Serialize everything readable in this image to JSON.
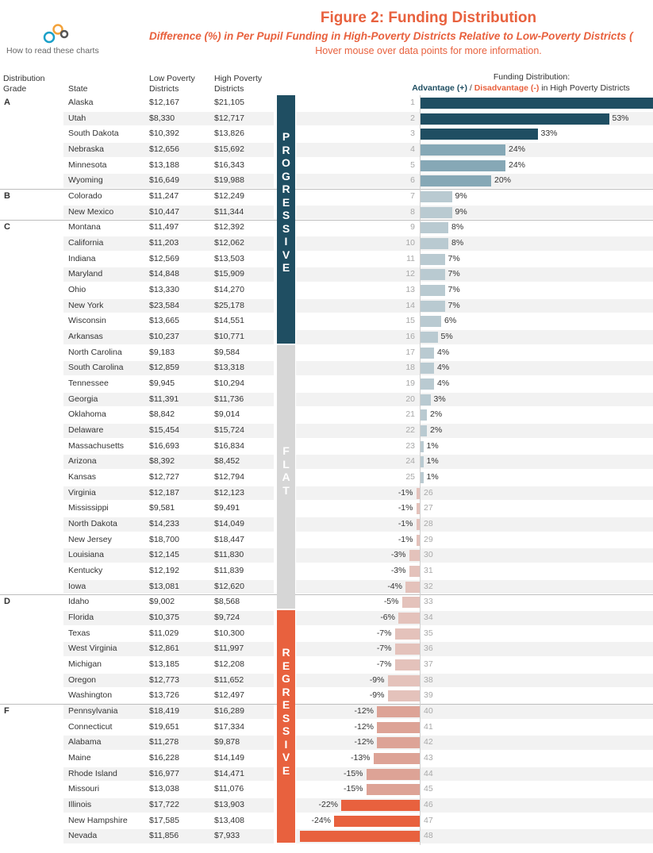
{
  "header": {
    "logo_caption": "How to read these charts",
    "title": "Figure 2: Funding Distribution",
    "subtitle": "Difference (%) in Per Pupil Funding in High-Poverty Districts Relative to Low-Poverty Districts (",
    "hover_note": "Hover mouse over data points for more information."
  },
  "columns": {
    "grade_1": "Distribution",
    "grade_2": "Grade",
    "state": "State",
    "low_1": "Low Poverty",
    "low_2": "Districts",
    "high_1": "High Poverty",
    "high_2": "Districts",
    "fd_title": "Funding Distribution:",
    "legend_adv": "Advantage (+)",
    "legend_sep": " / ",
    "legend_dis": "Disadvantage (-)",
    "legend_tail": " in High Poverty Districts"
  },
  "bands": {
    "progressive": "PROGRESSIVE",
    "flat": "FLAT",
    "regressive": "REGRESSIVE"
  },
  "colors": {
    "progressive": "#1f4e62",
    "flat": "#d6d6d6",
    "regressive": "#e8613e",
    "bar_top": "#1f4e62",
    "bar_mid": "#86a8b6",
    "bar_light": "#b9cad1",
    "bar_neg_light": "#e4c2bb",
    "bar_neg_mid": "#dda396",
    "bar_neg_dark": "#e8613e"
  },
  "chart_data": {
    "type": "bar",
    "title": "Funding Distribution: Advantage (+) / Disadvantage (-) in High Poverty Districts",
    "xlabel": "",
    "ylabel": "",
    "value_unit": "%",
    "grades": [
      "A",
      "B",
      "C",
      "D",
      "F"
    ],
    "rows": [
      {
        "grade": "A",
        "state": "Alaska",
        "low": "$12,167",
        "high": "$21,105",
        "rank": "1",
        "pct": 73,
        "label": ""
      },
      {
        "grade": "",
        "state": "Utah",
        "low": "$8,330",
        "high": "$12,717",
        "rank": "2",
        "pct": 53,
        "label": "53%"
      },
      {
        "grade": "",
        "state": "South Dakota",
        "low": "$10,392",
        "high": "$13,826",
        "rank": "3",
        "pct": 33,
        "label": "33%"
      },
      {
        "grade": "",
        "state": "Nebraska",
        "low": "$12,656",
        "high": "$15,692",
        "rank": "4",
        "pct": 24,
        "label": "24%"
      },
      {
        "grade": "",
        "state": "Minnesota",
        "low": "$13,188",
        "high": "$16,343",
        "rank": "5",
        "pct": 24,
        "label": "24%"
      },
      {
        "grade": "",
        "state": "Wyoming",
        "low": "$16,649",
        "high": "$19,988",
        "rank": "6",
        "pct": 20,
        "label": "20%"
      },
      {
        "grade": "B",
        "state": "Colorado",
        "low": "$11,247",
        "high": "$12,249",
        "rank": "7",
        "pct": 9,
        "label": "9%"
      },
      {
        "grade": "",
        "state": "New Mexico",
        "low": "$10,447",
        "high": "$11,344",
        "rank": "8",
        "pct": 9,
        "label": "9%"
      },
      {
        "grade": "C",
        "state": "Montana",
        "low": "$11,497",
        "high": "$12,392",
        "rank": "9",
        "pct": 8,
        "label": "8%"
      },
      {
        "grade": "",
        "state": "California",
        "low": "$11,203",
        "high": "$12,062",
        "rank": "10",
        "pct": 8,
        "label": "8%"
      },
      {
        "grade": "",
        "state": "Indiana",
        "low": "$12,569",
        "high": "$13,503",
        "rank": "11",
        "pct": 7,
        "label": "7%"
      },
      {
        "grade": "",
        "state": "Maryland",
        "low": "$14,848",
        "high": "$15,909",
        "rank": "12",
        "pct": 7,
        "label": "7%"
      },
      {
        "grade": "",
        "state": "Ohio",
        "low": "$13,330",
        "high": "$14,270",
        "rank": "13",
        "pct": 7,
        "label": "7%"
      },
      {
        "grade": "",
        "state": "New York",
        "low": "$23,584",
        "high": "$25,178",
        "rank": "14",
        "pct": 7,
        "label": "7%"
      },
      {
        "grade": "",
        "state": "Wisconsin",
        "low": "$13,665",
        "high": "$14,551",
        "rank": "15",
        "pct": 6,
        "label": "6%"
      },
      {
        "grade": "",
        "state": "Arkansas",
        "low": "$10,237",
        "high": "$10,771",
        "rank": "16",
        "pct": 5,
        "label": "5%"
      },
      {
        "grade": "",
        "state": "North Carolina",
        "low": "$9,183",
        "high": "$9,584",
        "rank": "17",
        "pct": 4,
        "label": "4%"
      },
      {
        "grade": "",
        "state": "South Carolina",
        "low": "$12,859",
        "high": "$13,318",
        "rank": "18",
        "pct": 4,
        "label": "4%"
      },
      {
        "grade": "",
        "state": "Tennessee",
        "low": "$9,945",
        "high": "$10,294",
        "rank": "19",
        "pct": 4,
        "label": "4%"
      },
      {
        "grade": "",
        "state": "Georgia",
        "low": "$11,391",
        "high": "$11,736",
        "rank": "20",
        "pct": 3,
        "label": "3%"
      },
      {
        "grade": "",
        "state": "Oklahoma",
        "low": "$8,842",
        "high": "$9,014",
        "rank": "21",
        "pct": 2,
        "label": "2%"
      },
      {
        "grade": "",
        "state": "Delaware",
        "low": "$15,454",
        "high": "$15,724",
        "rank": "22",
        "pct": 2,
        "label": "2%"
      },
      {
        "grade": "",
        "state": "Massachusetts",
        "low": "$16,693",
        "high": "$16,834",
        "rank": "23",
        "pct": 1,
        "label": "1%"
      },
      {
        "grade": "",
        "state": "Arizona",
        "low": "$8,392",
        "high": "$8,452",
        "rank": "24",
        "pct": 1,
        "label": "1%"
      },
      {
        "grade": "",
        "state": "Kansas",
        "low": "$12,727",
        "high": "$12,794",
        "rank": "25",
        "pct": 1,
        "label": "1%"
      },
      {
        "grade": "",
        "state": "Virginia",
        "low": "$12,187",
        "high": "$12,123",
        "rank": "26",
        "pct": -1,
        "label": "-1%"
      },
      {
        "grade": "",
        "state": "Mississippi",
        "low": "$9,581",
        "high": "$9,491",
        "rank": "27",
        "pct": -1,
        "label": "-1%"
      },
      {
        "grade": "",
        "state": "North Dakota",
        "low": "$14,233",
        "high": "$14,049",
        "rank": "28",
        "pct": -1,
        "label": "-1%"
      },
      {
        "grade": "",
        "state": "New Jersey",
        "low": "$18,700",
        "high": "$18,447",
        "rank": "29",
        "pct": -1,
        "label": "-1%"
      },
      {
        "grade": "",
        "state": "Louisiana",
        "low": "$12,145",
        "high": "$11,830",
        "rank": "30",
        "pct": -3,
        "label": "-3%"
      },
      {
        "grade": "",
        "state": "Kentucky",
        "low": "$12,192",
        "high": "$11,839",
        "rank": "31",
        "pct": -3,
        "label": "-3%"
      },
      {
        "grade": "",
        "state": "Iowa",
        "low": "$13,081",
        "high": "$12,620",
        "rank": "32",
        "pct": -4,
        "label": "-4%"
      },
      {
        "grade": "D",
        "state": "Idaho",
        "low": "$9,002",
        "high": "$8,568",
        "rank": "33",
        "pct": -5,
        "label": "-5%"
      },
      {
        "grade": "",
        "state": "Florida",
        "low": "$10,375",
        "high": "$9,724",
        "rank": "34",
        "pct": -6,
        "label": "-6%"
      },
      {
        "grade": "",
        "state": "Texas",
        "low": "$11,029",
        "high": "$10,300",
        "rank": "35",
        "pct": -7,
        "label": "-7%"
      },
      {
        "grade": "",
        "state": "West Virginia",
        "low": "$12,861",
        "high": "$11,997",
        "rank": "36",
        "pct": -7,
        "label": "-7%"
      },
      {
        "grade": "",
        "state": "Michigan",
        "low": "$13,185",
        "high": "$12,208",
        "rank": "37",
        "pct": -7,
        "label": "-7%"
      },
      {
        "grade": "",
        "state": "Oregon",
        "low": "$12,773",
        "high": "$11,652",
        "rank": "38",
        "pct": -9,
        "label": "-9%"
      },
      {
        "grade": "",
        "state": "Washington",
        "low": "$13,726",
        "high": "$12,497",
        "rank": "39",
        "pct": -9,
        "label": "-9%"
      },
      {
        "grade": "F",
        "state": "Pennsylvania",
        "low": "$18,419",
        "high": "$16,289",
        "rank": "40",
        "pct": -12,
        "label": "-12%"
      },
      {
        "grade": "",
        "state": "Connecticut",
        "low": "$19,651",
        "high": "$17,334",
        "rank": "41",
        "pct": -12,
        "label": "-12%"
      },
      {
        "grade": "",
        "state": "Alabama",
        "low": "$11,278",
        "high": "$9,878",
        "rank": "42",
        "pct": -12,
        "label": "-12%"
      },
      {
        "grade": "",
        "state": "Maine",
        "low": "$16,228",
        "high": "$14,149",
        "rank": "43",
        "pct": -13,
        "label": "-13%"
      },
      {
        "grade": "",
        "state": "Rhode Island",
        "low": "$16,977",
        "high": "$14,471",
        "rank": "44",
        "pct": -15,
        "label": "-15%"
      },
      {
        "grade": "",
        "state": "Missouri",
        "low": "$13,038",
        "high": "$11,076",
        "rank": "45",
        "pct": -15,
        "label": "-15%"
      },
      {
        "grade": "",
        "state": "Illinois",
        "low": "$17,722",
        "high": "$13,903",
        "rank": "46",
        "pct": -22,
        "label": "-22%"
      },
      {
        "grade": "",
        "state": "New Hampshire",
        "low": "$17,585",
        "high": "$13,408",
        "rank": "47",
        "pct": -24,
        "label": "-24%"
      },
      {
        "grade": "",
        "state": "Nevada",
        "low": "$11,856",
        "high": "$7,933",
        "rank": "48",
        "pct": -33,
        "label": ""
      }
    ]
  }
}
